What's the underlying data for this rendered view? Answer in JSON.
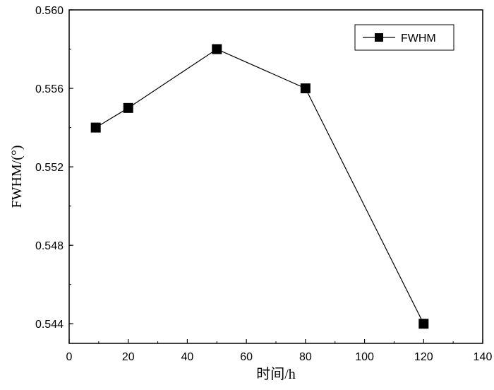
{
  "chart_data": {
    "type": "line",
    "title": "",
    "xlabel": "时间/h",
    "ylabel": "FWHM/(°)",
    "xlim": [
      0,
      140
    ],
    "ylim": [
      0.543,
      0.56
    ],
    "x_ticks": [
      "0",
      "20",
      "40",
      "60",
      "80",
      "100",
      "120",
      "140"
    ],
    "y_ticks": [
      "0.544",
      "0.548",
      "0.552",
      "0.556",
      "0.560"
    ],
    "grid": false,
    "legend_position": "top-right",
    "series": [
      {
        "name": "FWHM",
        "marker": "square",
        "color": "#000000",
        "x": [
          9,
          20,
          50,
          80,
          120
        ],
        "y": [
          0.554,
          0.555,
          0.558,
          0.556,
          0.544
        ]
      }
    ]
  }
}
